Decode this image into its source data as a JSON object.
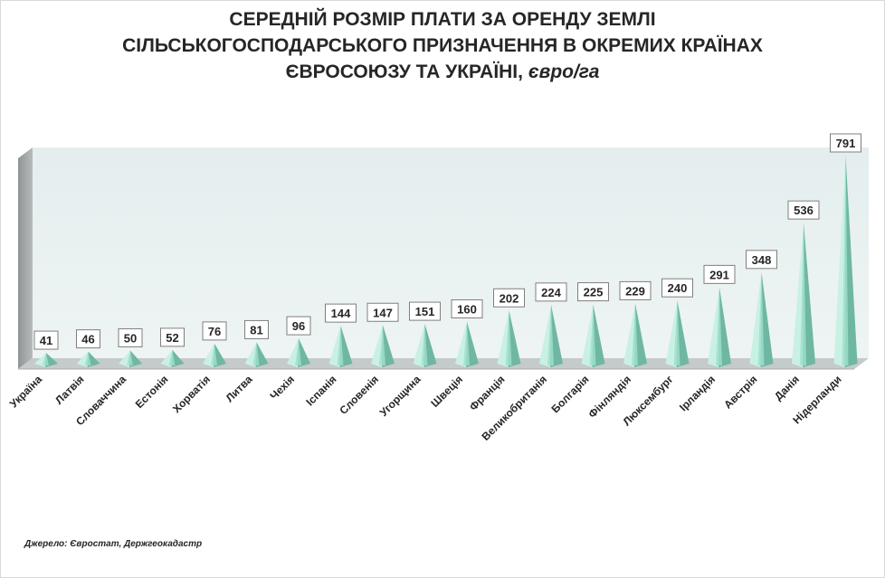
{
  "chart_data": {
    "type": "bar",
    "title_lines": [
      "СЕРЕДНІЙ РОЗМІР ПЛАТИ ЗА ОРЕНДУ ЗЕМЛІ",
      "СІЛЬСЬКОГОСПОДАРСЬКОГО  ПРИЗНАЧЕННЯ В ОКРЕМИХ КРАЇНАХ",
      "ЄВРОСОЮЗУ ТА УКРАЇНІ,"
    ],
    "title_unit": "євро/га",
    "categories": [
      "Україна",
      "Латвія",
      "Словаччина",
      "Естонія",
      "Хорватія",
      "Литва",
      "Чехія",
      "Іспанія",
      "Словенія",
      "Угорщина",
      "Швеція",
      "Франція",
      "Великобританія",
      "Болгарія",
      "Фінляндія",
      "Люксембург",
      "Ірландія",
      "Австрія",
      "Данія",
      "Нідерланди"
    ],
    "values": [
      41,
      46,
      50,
      52,
      76,
      81,
      96,
      144,
      147,
      151,
      160,
      202,
      224,
      225,
      229,
      240,
      291,
      348,
      536,
      791
    ],
    "ylim": [
      0,
      791
    ],
    "grid": false,
    "legend": "none",
    "bar_shape": "pyramid",
    "colors": {
      "bar_light": "#c9f1e3",
      "bar_mid": "#9fe0cc",
      "bar_dark": "#6fb7a2",
      "wall": "#e8f0f0",
      "floor": "#bfc4c4",
      "side": "#9ea2a2"
    }
  },
  "source": "Джерело: Євростат, Держгеокадастр"
}
